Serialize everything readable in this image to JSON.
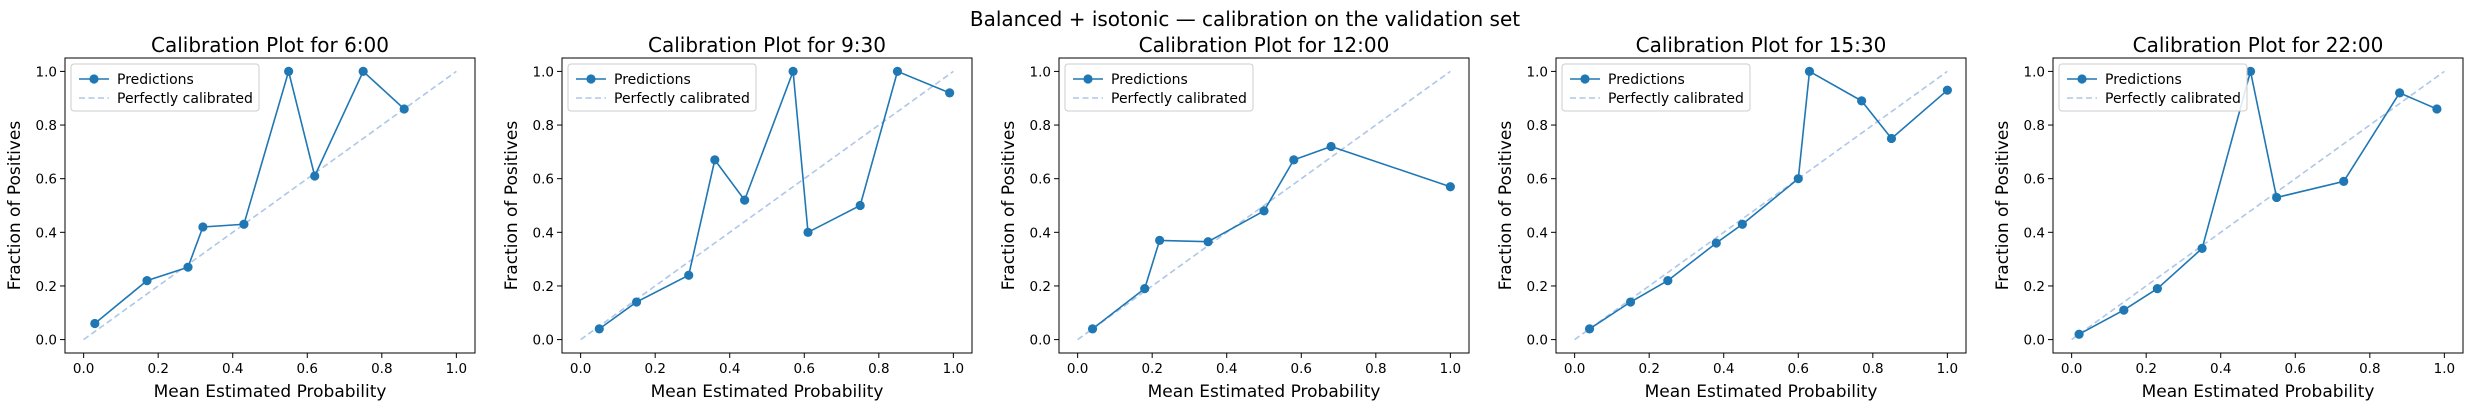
{
  "figure": {
    "suptitle": "Balanced + isotonic — calibration on the validation set"
  },
  "colors": {
    "predictions": "#1f77b4",
    "perfect": "#aec7e8",
    "axes": "#000000",
    "legend_border": "#cccccc"
  },
  "chart_data": [
    {
      "type": "line",
      "title": "Calibration Plot for 6:00",
      "xlabel": "Mean Estimated Probability",
      "ylabel": "Fraction of Positives",
      "xlim": [
        -0.05,
        1.05
      ],
      "ylim": [
        -0.05,
        1.05
      ],
      "xticks": [
        0.0,
        0.2,
        0.4,
        0.6,
        0.8,
        1.0
      ],
      "yticks": [
        0.0,
        0.2,
        0.4,
        0.6,
        0.8,
        1.0
      ],
      "legend_position": "upper-left",
      "series": [
        {
          "name": "Predictions",
          "style": "line-with-markers",
          "x": [
            0.03,
            0.17,
            0.28,
            0.32,
            0.43,
            0.55,
            0.62,
            0.75,
            0.86
          ],
          "y": [
            0.06,
            0.22,
            0.27,
            0.42,
            0.43,
            1.0,
            0.61,
            1.0,
            0.86
          ]
        },
        {
          "name": "Perfectly calibrated",
          "style": "dashed",
          "x": [
            0.0,
            1.0
          ],
          "y": [
            0.0,
            1.0
          ]
        }
      ]
    },
    {
      "type": "line",
      "title": "Calibration Plot for 9:30",
      "xlabel": "Mean Estimated Probability",
      "ylabel": "Fraction of Positives",
      "xlim": [
        -0.05,
        1.05
      ],
      "ylim": [
        -0.05,
        1.05
      ],
      "xticks": [
        0.0,
        0.2,
        0.4,
        0.6,
        0.8,
        1.0
      ],
      "yticks": [
        0.0,
        0.2,
        0.4,
        0.6,
        0.8,
        1.0
      ],
      "legend_position": "upper-left",
      "series": [
        {
          "name": "Predictions",
          "style": "line-with-markers",
          "x": [
            0.05,
            0.15,
            0.29,
            0.36,
            0.44,
            0.57,
            0.61,
            0.75,
            0.85,
            0.99
          ],
          "y": [
            0.04,
            0.14,
            0.24,
            0.67,
            0.52,
            1.0,
            0.4,
            0.5,
            1.0,
            0.92
          ]
        },
        {
          "name": "Perfectly calibrated",
          "style": "dashed",
          "x": [
            0.0,
            1.0
          ],
          "y": [
            0.0,
            1.0
          ]
        }
      ]
    },
    {
      "type": "line",
      "title": "Calibration Plot for 12:00",
      "xlabel": "Mean Estimated Probability",
      "ylabel": "Fraction of Positives",
      "xlim": [
        -0.05,
        1.05
      ],
      "ylim": [
        -0.05,
        1.05
      ],
      "xticks": [
        0.0,
        0.2,
        0.4,
        0.6,
        0.8,
        1.0
      ],
      "yticks": [
        0.0,
        0.2,
        0.4,
        0.6,
        0.8,
        1.0
      ],
      "legend_position": "upper-left",
      "series": [
        {
          "name": "Predictions",
          "style": "line-with-markers",
          "x": [
            0.04,
            0.18,
            0.22,
            0.35,
            0.5,
            0.58,
            0.68,
            1.0
          ],
          "y": [
            0.04,
            0.19,
            0.37,
            0.365,
            0.48,
            0.67,
            0.72,
            0.57
          ]
        },
        {
          "name": "Perfectly calibrated",
          "style": "dashed",
          "x": [
            0.0,
            1.0
          ],
          "y": [
            0.0,
            1.0
          ]
        }
      ]
    },
    {
      "type": "line",
      "title": "Calibration Plot for 15:30",
      "xlabel": "Mean Estimated Probability",
      "ylabel": "Fraction of Positives",
      "xlim": [
        -0.05,
        1.05
      ],
      "ylim": [
        -0.05,
        1.05
      ],
      "xticks": [
        0.0,
        0.2,
        0.4,
        0.6,
        0.8,
        1.0
      ],
      "yticks": [
        0.0,
        0.2,
        0.4,
        0.6,
        0.8,
        1.0
      ],
      "legend_position": "upper-left",
      "series": [
        {
          "name": "Predictions",
          "style": "line-with-markers",
          "x": [
            0.04,
            0.15,
            0.25,
            0.38,
            0.45,
            0.6,
            0.63,
            0.77,
            0.85,
            1.0
          ],
          "y": [
            0.04,
            0.14,
            0.22,
            0.36,
            0.43,
            0.6,
            1.0,
            0.89,
            0.75,
            0.93
          ]
        },
        {
          "name": "Perfectly calibrated",
          "style": "dashed",
          "x": [
            0.0,
            1.0
          ],
          "y": [
            0.0,
            1.0
          ]
        }
      ]
    },
    {
      "type": "line",
      "title": "Calibration Plot for 22:00",
      "xlabel": "Mean Estimated Probability",
      "ylabel": "Fraction of Positives",
      "xlim": [
        -0.05,
        1.05
      ],
      "ylim": [
        -0.05,
        1.05
      ],
      "xticks": [
        0.0,
        0.2,
        0.4,
        0.6,
        0.8,
        1.0
      ],
      "yticks": [
        0.0,
        0.2,
        0.4,
        0.6,
        0.8,
        1.0
      ],
      "legend_position": "upper-left",
      "series": [
        {
          "name": "Predictions",
          "style": "line-with-markers",
          "x": [
            0.02,
            0.14,
            0.23,
            0.35,
            0.48,
            0.55,
            0.73,
            0.88,
            0.98
          ],
          "y": [
            0.02,
            0.11,
            0.19,
            0.34,
            1.0,
            0.53,
            0.59,
            0.92,
            0.86
          ]
        },
        {
          "name": "Perfectly calibrated",
          "style": "dashed",
          "x": [
            0.0,
            1.0
          ],
          "y": [
            0.0,
            1.0
          ]
        }
      ]
    }
  ]
}
